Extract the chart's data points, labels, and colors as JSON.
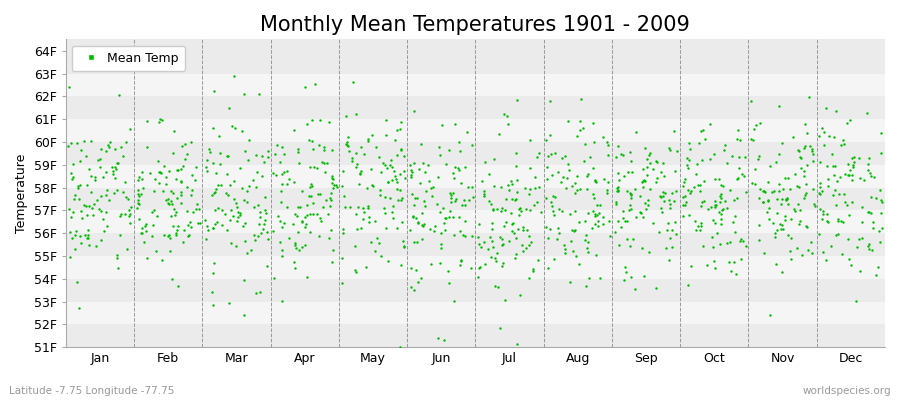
{
  "title": "Monthly Mean Temperatures 1901 - 2009",
  "ylabel": "Temperature",
  "xlabel_labels": [
    "Jan",
    "Feb",
    "Mar",
    "Apr",
    "May",
    "Jun",
    "Jul",
    "Aug",
    "Sep",
    "Oct",
    "Nov",
    "Dec"
  ],
  "ytick_labels": [
    "51F",
    "52F",
    "53F",
    "54F",
    "55F",
    "56F",
    "57F",
    "58F",
    "59F",
    "60F",
    "61F",
    "62F",
    "63F",
    "64F"
  ],
  "ytick_values": [
    51,
    52,
    53,
    54,
    55,
    56,
    57,
    58,
    59,
    60,
    61,
    62,
    63,
    64
  ],
  "ylim": [
    51,
    64.5
  ],
  "dot_color": "#00bb00",
  "dot_size": 3,
  "background_color": "#ffffff",
  "plot_bg_light": "#ebebeb",
  "plot_bg_dark": "#f5f5f5",
  "legend_label": "Mean Temp",
  "subtitle_left": "Latitude -7.75 Longitude -77.75",
  "subtitle_right": "worldspecies.org",
  "title_fontsize": 15,
  "axis_label_fontsize": 9,
  "tick_fontsize": 9,
  "n_years": 109,
  "seed": 42,
  "month_means": [
    57.5,
    57.3,
    57.6,
    57.8,
    57.9,
    56.8,
    56.9,
    57.2,
    57.4,
    57.6,
    57.8,
    57.7
  ],
  "month_stds": [
    1.8,
    1.7,
    1.9,
    1.8,
    2.0,
    1.9,
    2.0,
    1.8,
    1.7,
    1.8,
    1.9,
    1.8
  ]
}
